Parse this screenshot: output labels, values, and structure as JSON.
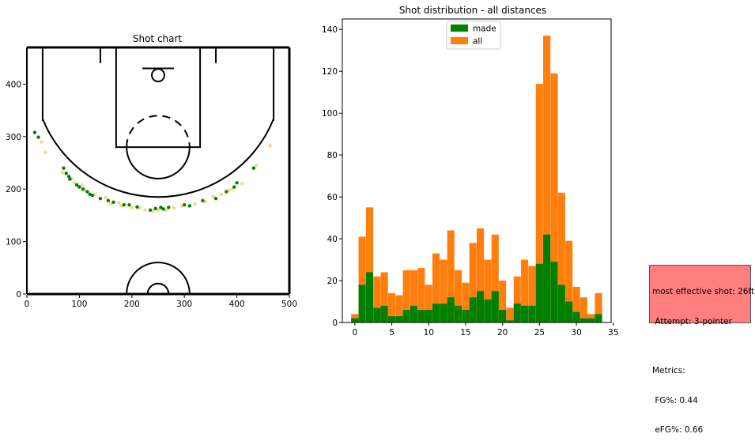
{
  "chart_data": [
    {
      "type": "scatter",
      "title": "Shot chart",
      "xlabel": "",
      "ylabel": "",
      "xlim": [
        0,
        500
      ],
      "ylim": [
        0,
        470
      ],
      "xticks": [
        0,
        100,
        200,
        300,
        400,
        500
      ],
      "yticks": [
        0,
        100,
        200,
        300,
        400
      ],
      "grid": false,
      "colors": {
        "made": "#008000",
        "missed": "#ffc04d",
        "court": "#000000"
      },
      "series": [
        {
          "values": [
            [
              15,
              308
            ],
            [
              22,
              299
            ],
            [
              70,
              240
            ],
            [
              75,
              230
            ],
            [
              80,
              224
            ],
            [
              82,
              219
            ],
            [
              95,
              208
            ],
            [
              100,
              204
            ],
            [
              107,
              200
            ],
            [
              115,
              195
            ],
            [
              120,
              190
            ],
            [
              125,
              188
            ],
            [
              140,
              182
            ],
            [
              155,
              178
            ],
            [
              165,
              175
            ],
            [
              185,
              170
            ],
            [
              195,
              170
            ],
            [
              210,
              166
            ],
            [
              235,
              160
            ],
            [
              245,
              163
            ],
            [
              255,
              165
            ],
            [
              260,
              162
            ],
            [
              270,
              165
            ],
            [
              300,
              170
            ],
            [
              310,
              168
            ],
            [
              335,
              178
            ],
            [
              360,
              182
            ],
            [
              380,
              195
            ],
            [
              395,
              204
            ],
            [
              400,
              212
            ],
            [
              432,
              240
            ]
          ]
        },
        {
          "values": [
            [
              28,
              290
            ],
            [
              35,
              270
            ],
            [
              68,
              232
            ],
            [
              85,
              220
            ],
            [
              90,
              212
            ],
            [
              98,
              205
            ],
            [
              105,
              208
            ],
            [
              110,
              198
            ],
            [
              130,
              190
            ],
            [
              150,
              184
            ],
            [
              160,
              172
            ],
            [
              175,
              174
            ],
            [
              180,
              168
            ],
            [
              200,
              165
            ],
            [
              215,
              164
            ],
            [
              225,
              160
            ],
            [
              240,
              158
            ],
            [
              250,
              160
            ],
            [
              265,
              160
            ],
            [
              280,
              164
            ],
            [
              295,
              168
            ],
            [
              320,
              172
            ],
            [
              340,
              176
            ],
            [
              355,
              186
            ],
            [
              370,
              190
            ],
            [
              385,
              198
            ],
            [
              392,
              200
            ],
            [
              410,
              210
            ],
            [
              437,
              245
            ],
            [
              463,
              283
            ]
          ]
        }
      ]
    },
    {
      "type": "bar",
      "title": "Shot distribution - all distances",
      "xlabel": "",
      "ylabel": "",
      "xlim": [
        -1.7,
        34.7
      ],
      "ylim": [
        0,
        145
      ],
      "xticks": [
        0,
        5,
        10,
        15,
        20,
        25,
        30,
        35
      ],
      "yticks": [
        0,
        20,
        40,
        60,
        80,
        100,
        120,
        140
      ],
      "grid": false,
      "legend": "upper-center",
      "colors": {
        "made": "#008000",
        "all": "#ff7f0e"
      },
      "x": [
        0,
        1,
        2,
        3,
        4,
        5,
        6,
        7,
        8,
        9,
        10,
        11,
        12,
        13,
        14,
        15,
        16,
        17,
        18,
        19,
        20,
        21,
        22,
        23,
        24,
        25,
        26,
        27,
        28,
        29,
        30,
        31,
        32,
        33
      ],
      "series": [
        {
          "name": "made",
          "values": [
            2,
            18,
            24,
            7,
            8,
            3,
            3,
            6,
            8,
            6,
            6,
            9,
            9,
            12,
            8,
            6,
            12,
            15,
            11,
            15,
            6,
            1,
            9,
            8,
            8,
            28,
            42,
            29,
            18,
            10,
            5,
            2,
            2,
            4
          ]
        },
        {
          "name": "all",
          "values": [
            4,
            41,
            55,
            22,
            24,
            14,
            13,
            25,
            25,
            26,
            18,
            33,
            30,
            44,
            25,
            19,
            38,
            45,
            30,
            42,
            20,
            7,
            22,
            30,
            27,
            114,
            137,
            119,
            62,
            39,
            17,
            12,
            4,
            14
          ]
        }
      ]
    }
  ],
  "info": {
    "line1": "most effective shot: 26ft",
    "line2": " Attempt: 3-pointer",
    "line3": "",
    "line4": "Metrics:",
    "line5": " FG%: 0.44",
    "line6": " eFG%: 0.66"
  }
}
